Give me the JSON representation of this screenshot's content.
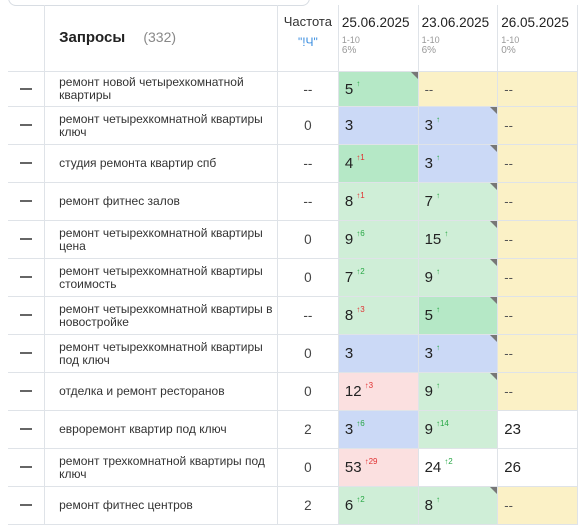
{
  "header": {
    "query_title": "Запросы",
    "query_count": "(332)",
    "freq_title": "Частота",
    "freq_sub": "\"!Ч\"",
    "dates": [
      {
        "date": "25.06.2025",
        "range": "1-10",
        "pct": "6%"
      },
      {
        "date": "23.06.2025",
        "range": "1-10",
        "pct": "6%"
      },
      {
        "date": "26.05.2025",
        "range": "1-10",
        "pct": "0%"
      }
    ]
  },
  "rows": [
    {
      "query": "ремонт новой четырехкомнатной квартиры",
      "freq": "--",
      "d1": {
        "pos": "5",
        "chg": "↑",
        "dir": "up",
        "color": "green2",
        "marker": true
      },
      "d2": {
        "pos": "--",
        "chg": "",
        "dir": "",
        "color": "yellow",
        "marker": false
      },
      "d3": {
        "pos": "--",
        "chg": "",
        "dir": "",
        "color": "yellow",
        "marker": false
      }
    },
    {
      "query": "ремонт четырехкомнатной квартиры ключ",
      "freq": "0",
      "d1": {
        "pos": "3",
        "chg": "",
        "dir": "",
        "color": "blue",
        "marker": false
      },
      "d2": {
        "pos": "3",
        "chg": "↑",
        "dir": "up",
        "color": "blue",
        "marker": true
      },
      "d3": {
        "pos": "--",
        "chg": "",
        "dir": "",
        "color": "yellow",
        "marker": false
      }
    },
    {
      "query": "студия ремонта квартир спб",
      "freq": "--",
      "d1": {
        "pos": "4",
        "chg": "↑1",
        "dir": "down",
        "color": "green2",
        "marker": false
      },
      "d2": {
        "pos": "3",
        "chg": "↑",
        "dir": "up",
        "color": "blue",
        "marker": true
      },
      "d3": {
        "pos": "--",
        "chg": "",
        "dir": "",
        "color": "yellow",
        "marker": false
      }
    },
    {
      "query": "ремонт фитнес залов",
      "freq": "--",
      "d1": {
        "pos": "8",
        "chg": "↑1",
        "dir": "down",
        "color": "green",
        "marker": false
      },
      "d2": {
        "pos": "7",
        "chg": "↑",
        "dir": "up",
        "color": "green",
        "marker": true
      },
      "d3": {
        "pos": "--",
        "chg": "",
        "dir": "",
        "color": "yellow",
        "marker": false
      }
    },
    {
      "query": "ремонт четырехкомнатной квартиры цена",
      "freq": "0",
      "d1": {
        "pos": "9",
        "chg": "↑6",
        "dir": "up",
        "color": "green",
        "marker": false
      },
      "d2": {
        "pos": "15",
        "chg": "↑",
        "dir": "up",
        "color": "green",
        "marker": true
      },
      "d3": {
        "pos": "--",
        "chg": "",
        "dir": "",
        "color": "yellow",
        "marker": false
      }
    },
    {
      "query": "ремонт четырехкомнатной квартиры стоимость",
      "freq": "0",
      "d1": {
        "pos": "7",
        "chg": "↑2",
        "dir": "up",
        "color": "green",
        "marker": false
      },
      "d2": {
        "pos": "9",
        "chg": "↑",
        "dir": "up",
        "color": "green",
        "marker": true
      },
      "d3": {
        "pos": "--",
        "chg": "",
        "dir": "",
        "color": "yellow",
        "marker": false
      }
    },
    {
      "query": "ремонт четырехкомнатной квартиры в новостройке",
      "freq": "--",
      "d1": {
        "pos": "8",
        "chg": "↑3",
        "dir": "down",
        "color": "green",
        "marker": false
      },
      "d2": {
        "pos": "5",
        "chg": "↑",
        "dir": "up",
        "color": "green2",
        "marker": true
      },
      "d3": {
        "pos": "--",
        "chg": "",
        "dir": "",
        "color": "yellow",
        "marker": false
      }
    },
    {
      "query": "ремонт четырехкомнатной квартиры под ключ",
      "freq": "0",
      "d1": {
        "pos": "3",
        "chg": "",
        "dir": "",
        "color": "blue",
        "marker": false
      },
      "d2": {
        "pos": "3",
        "chg": "↑",
        "dir": "up",
        "color": "blue",
        "marker": true
      },
      "d3": {
        "pos": "--",
        "chg": "",
        "dir": "",
        "color": "yellow",
        "marker": false
      }
    },
    {
      "query": "отделка и ремонт ресторанов",
      "freq": "0",
      "d1": {
        "pos": "12",
        "chg": "↑3",
        "dir": "down",
        "color": "red",
        "marker": false
      },
      "d2": {
        "pos": "9",
        "chg": "↑",
        "dir": "up",
        "color": "green",
        "marker": true
      },
      "d3": {
        "pos": "--",
        "chg": "",
        "dir": "",
        "color": "yellow",
        "marker": false
      }
    },
    {
      "query": "евроремонт квартир под ключ",
      "freq": "2",
      "d1": {
        "pos": "3",
        "chg": "↑6",
        "dir": "up",
        "color": "blue",
        "marker": false
      },
      "d2": {
        "pos": "9",
        "chg": "↑14",
        "dir": "up",
        "color": "green",
        "marker": false
      },
      "d3": {
        "pos": "23",
        "chg": "",
        "dir": "",
        "color": "white",
        "marker": false
      }
    },
    {
      "query": "ремонт трехкомнатной квартиры под ключ",
      "freq": "0",
      "d1": {
        "pos": "53",
        "chg": "↑29",
        "dir": "down",
        "color": "red",
        "marker": false
      },
      "d2": {
        "pos": "24",
        "chg": "↑2",
        "dir": "up",
        "color": "white",
        "marker": false
      },
      "d3": {
        "pos": "26",
        "chg": "",
        "dir": "",
        "color": "white",
        "marker": false
      }
    },
    {
      "query": "ремонт фитнес центров",
      "freq": "2",
      "d1": {
        "pos": "6",
        "chg": "↑2",
        "dir": "up",
        "color": "green",
        "marker": false
      },
      "d2": {
        "pos": "8",
        "chg": "↑",
        "dir": "up",
        "color": "green",
        "marker": true
      },
      "d3": {
        "pos": "--",
        "chg": "",
        "dir": "",
        "color": "yellow",
        "marker": false
      }
    }
  ],
  "icons": {
    "row_action": "dash-icon",
    "marker": "corner-triangle-icon"
  },
  "colors": {
    "green": "#cfeed7",
    "green_strong": "#b5e8c6",
    "blue": "#cbd9f6",
    "red": "#fbe0e0",
    "yellow": "#fbf1c6",
    "accent": "#3d8fe0"
  }
}
